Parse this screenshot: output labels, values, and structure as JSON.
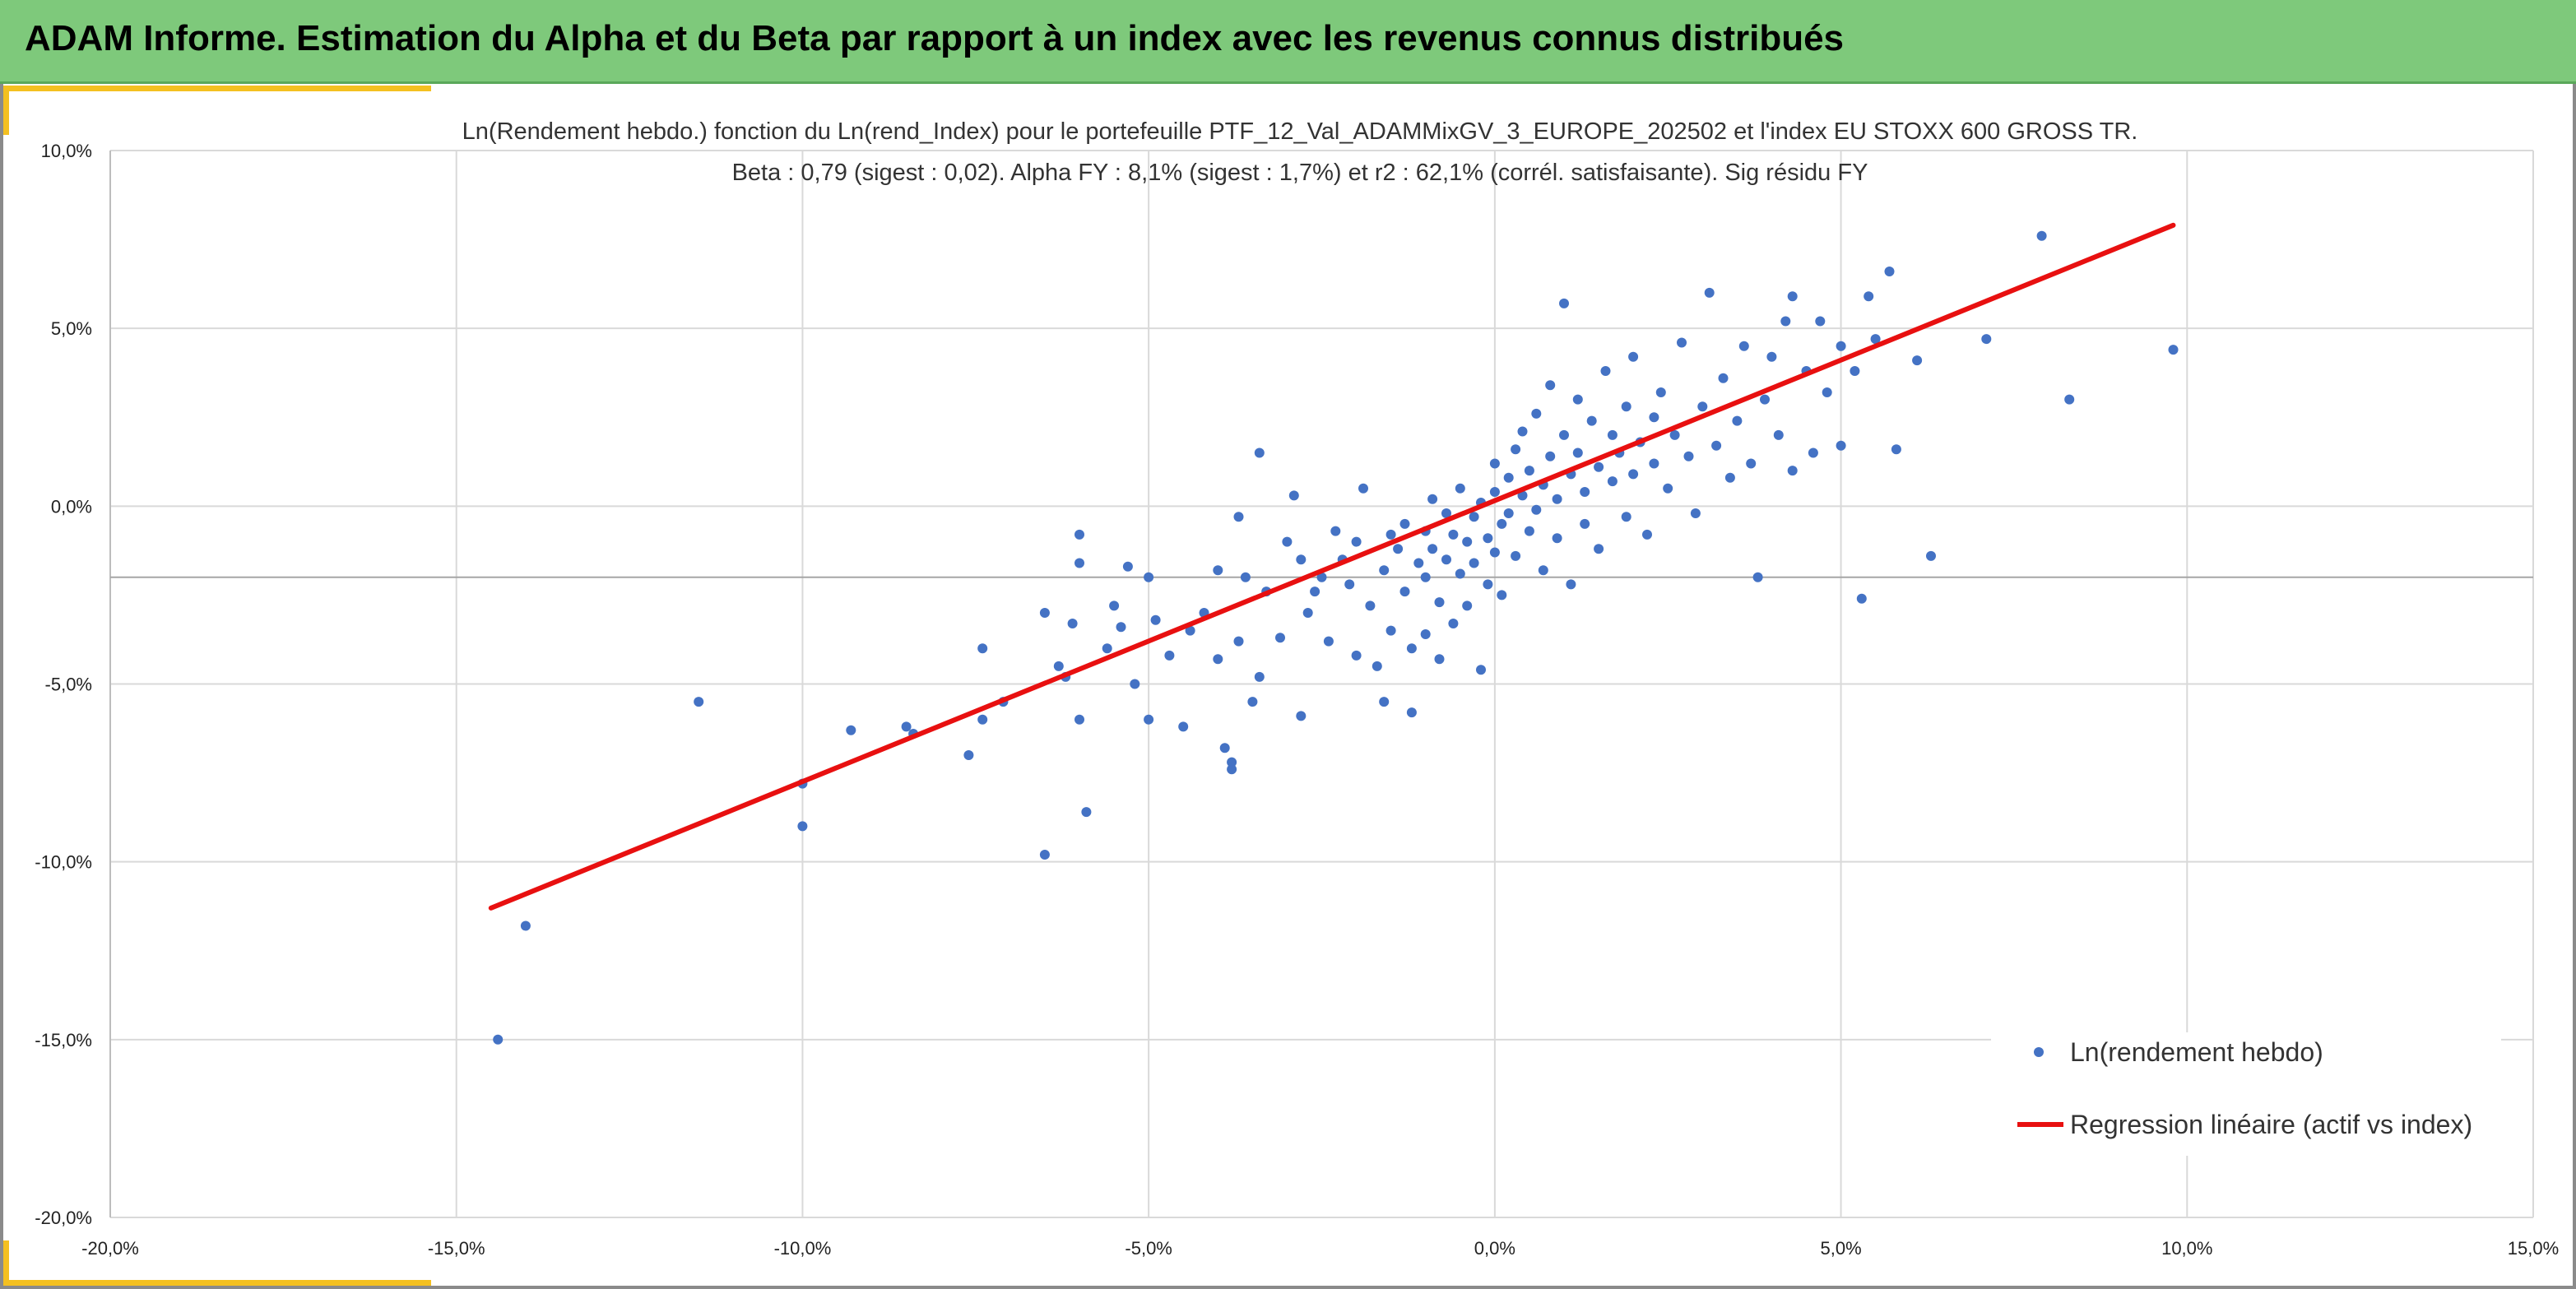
{
  "header": {
    "title": "ADAM Informe. Estimation du Alpha et du Beta par rapport à un index avec les revenus connus distribués"
  },
  "colors": {
    "header_bg": "#7ec97b",
    "accent": "#f4c020",
    "points": "#4472c4",
    "regression": "#e81010",
    "grid": "#d9d9d9"
  },
  "chart_data": {
    "type": "scatter",
    "title": "Ln(Rendement hebdo.) fonction du Ln(rend_Index) pour le portefeuille PTF_12_Val_ADAMMixGV_3_EUROPE_202502 et l'index EU STOXX 600 GROSS TR.",
    "subtitle": "Beta : 0,79 (sigest : 0,02). Alpha FY : 8,1% (sigest : 1,7%) et r2 : 62,1% (corrél. satisfaisante). Sig résidu FY",
    "xlabel": "",
    "ylabel": "",
    "xlim": [
      -20,
      15
    ],
    "ylim": [
      -20,
      10
    ],
    "x_ticks": [
      -20,
      -15,
      -10,
      -5,
      0,
      5,
      10,
      15
    ],
    "y_ticks": [
      -20,
      -15,
      -10,
      -5,
      0,
      5,
      10
    ],
    "x_tick_labels": [
      "-20,0%",
      "-15,0%",
      "-10,0%",
      "-5,0%",
      "0,0%",
      "5,0%",
      "10,0%",
      "15,0%"
    ],
    "y_tick_labels": [
      "-20,0%",
      "-15,0%",
      "-10,0%",
      "-5,0%",
      "0,0%",
      "5,0%",
      "10,0%"
    ],
    "grid": true,
    "legend_position": "bottom-right",
    "series": [
      {
        "name": "Ln(rendement hebdo)",
        "kind": "points",
        "points": [
          [
            -14.4,
            -15.0
          ],
          [
            -14.0,
            -11.8
          ],
          [
            -11.5,
            -5.5
          ],
          [
            -10.0,
            -9.0
          ],
          [
            -10.0,
            -7.8
          ],
          [
            -9.3,
            -6.3
          ],
          [
            -8.5,
            -6.2
          ],
          [
            -8.4,
            -6.4
          ],
          [
            -7.6,
            -7.0
          ],
          [
            -7.4,
            -6.0
          ],
          [
            -7.4,
            -4.0
          ],
          [
            -7.1,
            -5.5
          ],
          [
            -6.5,
            -9.8
          ],
          [
            -6.5,
            -3.0
          ],
          [
            -6.3,
            -4.5
          ],
          [
            -6.2,
            -4.8
          ],
          [
            -6.1,
            -3.3
          ],
          [
            -6.0,
            -6.0
          ],
          [
            -6.0,
            -0.8
          ],
          [
            -6.0,
            -1.6
          ],
          [
            -5.9,
            -8.6
          ],
          [
            -5.6,
            -4.0
          ],
          [
            -5.5,
            -2.8
          ],
          [
            -5.4,
            -3.4
          ],
          [
            -5.3,
            -1.7
          ],
          [
            -5.2,
            -5.0
          ],
          [
            -5.0,
            -6.0
          ],
          [
            -5.0,
            -2.0
          ],
          [
            -4.9,
            -3.2
          ],
          [
            -4.7,
            -4.2
          ],
          [
            -4.5,
            -6.2
          ],
          [
            -4.4,
            -3.5
          ],
          [
            -4.2,
            -3.0
          ],
          [
            -4.0,
            -1.8
          ],
          [
            -4.0,
            -4.3
          ],
          [
            -3.9,
            -6.8
          ],
          [
            -3.8,
            -7.2
          ],
          [
            -3.8,
            -7.4
          ],
          [
            -3.7,
            -3.8
          ],
          [
            -3.7,
            -0.3
          ],
          [
            -3.6,
            -2.0
          ],
          [
            -3.5,
            -5.5
          ],
          [
            -3.4,
            -4.8
          ],
          [
            -3.4,
            1.5
          ],
          [
            -3.3,
            -2.4
          ],
          [
            -3.1,
            -3.7
          ],
          [
            -3.0,
            -1.0
          ],
          [
            -2.9,
            0.3
          ],
          [
            -2.8,
            -5.9
          ],
          [
            -2.8,
            -1.5
          ],
          [
            -2.7,
            -3.0
          ],
          [
            -2.6,
            -2.4
          ],
          [
            -2.5,
            -2.0
          ],
          [
            -2.4,
            -3.8
          ],
          [
            -2.3,
            -0.7
          ],
          [
            -2.2,
            -1.5
          ],
          [
            -2.1,
            -2.2
          ],
          [
            -2.0,
            -4.2
          ],
          [
            -2.0,
            -1.0
          ],
          [
            -1.9,
            0.5
          ],
          [
            -1.8,
            -2.8
          ],
          [
            -1.7,
            -4.5
          ],
          [
            -1.6,
            -5.5
          ],
          [
            -1.6,
            -1.8
          ],
          [
            -1.5,
            -0.8
          ],
          [
            -1.5,
            -3.5
          ],
          [
            -1.4,
            -1.2
          ],
          [
            -1.3,
            -0.5
          ],
          [
            -1.3,
            -2.4
          ],
          [
            -1.2,
            -4.0
          ],
          [
            -1.2,
            -5.8
          ],
          [
            -1.1,
            -1.6
          ],
          [
            -1.0,
            -0.7
          ],
          [
            -1.0,
            -2.0
          ],
          [
            -1.0,
            -3.6
          ],
          [
            -0.9,
            0.2
          ],
          [
            -0.9,
            -1.2
          ],
          [
            -0.8,
            -4.3
          ],
          [
            -0.8,
            -2.7
          ],
          [
            -0.7,
            -0.2
          ],
          [
            -0.7,
            -1.5
          ],
          [
            -0.6,
            -3.3
          ],
          [
            -0.6,
            -0.8
          ],
          [
            -0.5,
            -1.9
          ],
          [
            -0.5,
            0.5
          ],
          [
            -0.4,
            -2.8
          ],
          [
            -0.4,
            -1.0
          ],
          [
            -0.3,
            -0.3
          ],
          [
            -0.3,
            -1.6
          ],
          [
            -0.2,
            -4.6
          ],
          [
            -0.2,
            0.1
          ],
          [
            -0.1,
            -0.9
          ],
          [
            -0.1,
            -2.2
          ],
          [
            0.0,
            0.4
          ],
          [
            0.0,
            -1.3
          ],
          [
            0.0,
            1.2
          ],
          [
            0.1,
            -0.5
          ],
          [
            0.1,
            -2.5
          ],
          [
            0.2,
            0.8
          ],
          [
            0.2,
            -0.2
          ],
          [
            0.3,
            1.6
          ],
          [
            0.3,
            -1.4
          ],
          [
            0.4,
            0.3
          ],
          [
            0.4,
            2.1
          ],
          [
            0.5,
            -0.7
          ],
          [
            0.5,
            1.0
          ],
          [
            0.6,
            2.6
          ],
          [
            0.6,
            -0.1
          ],
          [
            0.7,
            0.6
          ],
          [
            0.7,
            -1.8
          ],
          [
            0.8,
            1.4
          ],
          [
            0.8,
            3.4
          ],
          [
            0.9,
            0.2
          ],
          [
            0.9,
            -0.9
          ],
          [
            1.0,
            2.0
          ],
          [
            1.0,
            5.7
          ],
          [
            1.1,
            0.9
          ],
          [
            1.1,
            -2.2
          ],
          [
            1.2,
            1.5
          ],
          [
            1.2,
            3.0
          ],
          [
            1.3,
            0.4
          ],
          [
            1.3,
            -0.5
          ],
          [
            1.4,
            2.4
          ],
          [
            1.5,
            1.1
          ],
          [
            1.5,
            -1.2
          ],
          [
            1.6,
            3.8
          ],
          [
            1.7,
            0.7
          ],
          [
            1.7,
            2.0
          ],
          [
            1.8,
            1.5
          ],
          [
            1.9,
            -0.3
          ],
          [
            1.9,
            2.8
          ],
          [
            2.0,
            0.9
          ],
          [
            2.0,
            4.2
          ],
          [
            2.1,
            1.8
          ],
          [
            2.2,
            -0.8
          ],
          [
            2.3,
            2.5
          ],
          [
            2.3,
            1.2
          ],
          [
            2.4,
            3.2
          ],
          [
            2.5,
            0.5
          ],
          [
            2.6,
            2.0
          ],
          [
            2.7,
            4.6
          ],
          [
            2.8,
            1.4
          ],
          [
            2.9,
            -0.2
          ],
          [
            3.0,
            2.8
          ],
          [
            3.1,
            6.0
          ],
          [
            3.2,
            1.7
          ],
          [
            3.3,
            3.6
          ],
          [
            3.4,
            0.8
          ],
          [
            3.5,
            2.4
          ],
          [
            3.6,
            4.5
          ],
          [
            3.7,
            1.2
          ],
          [
            3.8,
            -2.0
          ],
          [
            3.9,
            3.0
          ],
          [
            4.0,
            4.2
          ],
          [
            4.1,
            2.0
          ],
          [
            4.2,
            5.2
          ],
          [
            4.3,
            1.0
          ],
          [
            4.3,
            5.9
          ],
          [
            4.5,
            3.8
          ],
          [
            4.6,
            1.5
          ],
          [
            4.7,
            5.2
          ],
          [
            4.8,
            3.2
          ],
          [
            5.0,
            1.7
          ],
          [
            5.0,
            4.5
          ],
          [
            5.2,
            3.8
          ],
          [
            5.3,
            -2.6
          ],
          [
            5.4,
            5.9
          ],
          [
            5.5,
            4.7
          ],
          [
            5.7,
            6.6
          ],
          [
            5.8,
            1.6
          ],
          [
            6.1,
            4.1
          ],
          [
            6.3,
            -1.4
          ],
          [
            7.1,
            4.7
          ],
          [
            7.9,
            7.6
          ],
          [
            8.3,
            3.0
          ],
          [
            9.8,
            4.4
          ]
        ]
      },
      {
        "name": "Regression linéaire (actif vs index)",
        "kind": "line",
        "x": [
          -14.5,
          9.8
        ],
        "y": [
          -11.3,
          7.9
        ]
      }
    ]
  }
}
